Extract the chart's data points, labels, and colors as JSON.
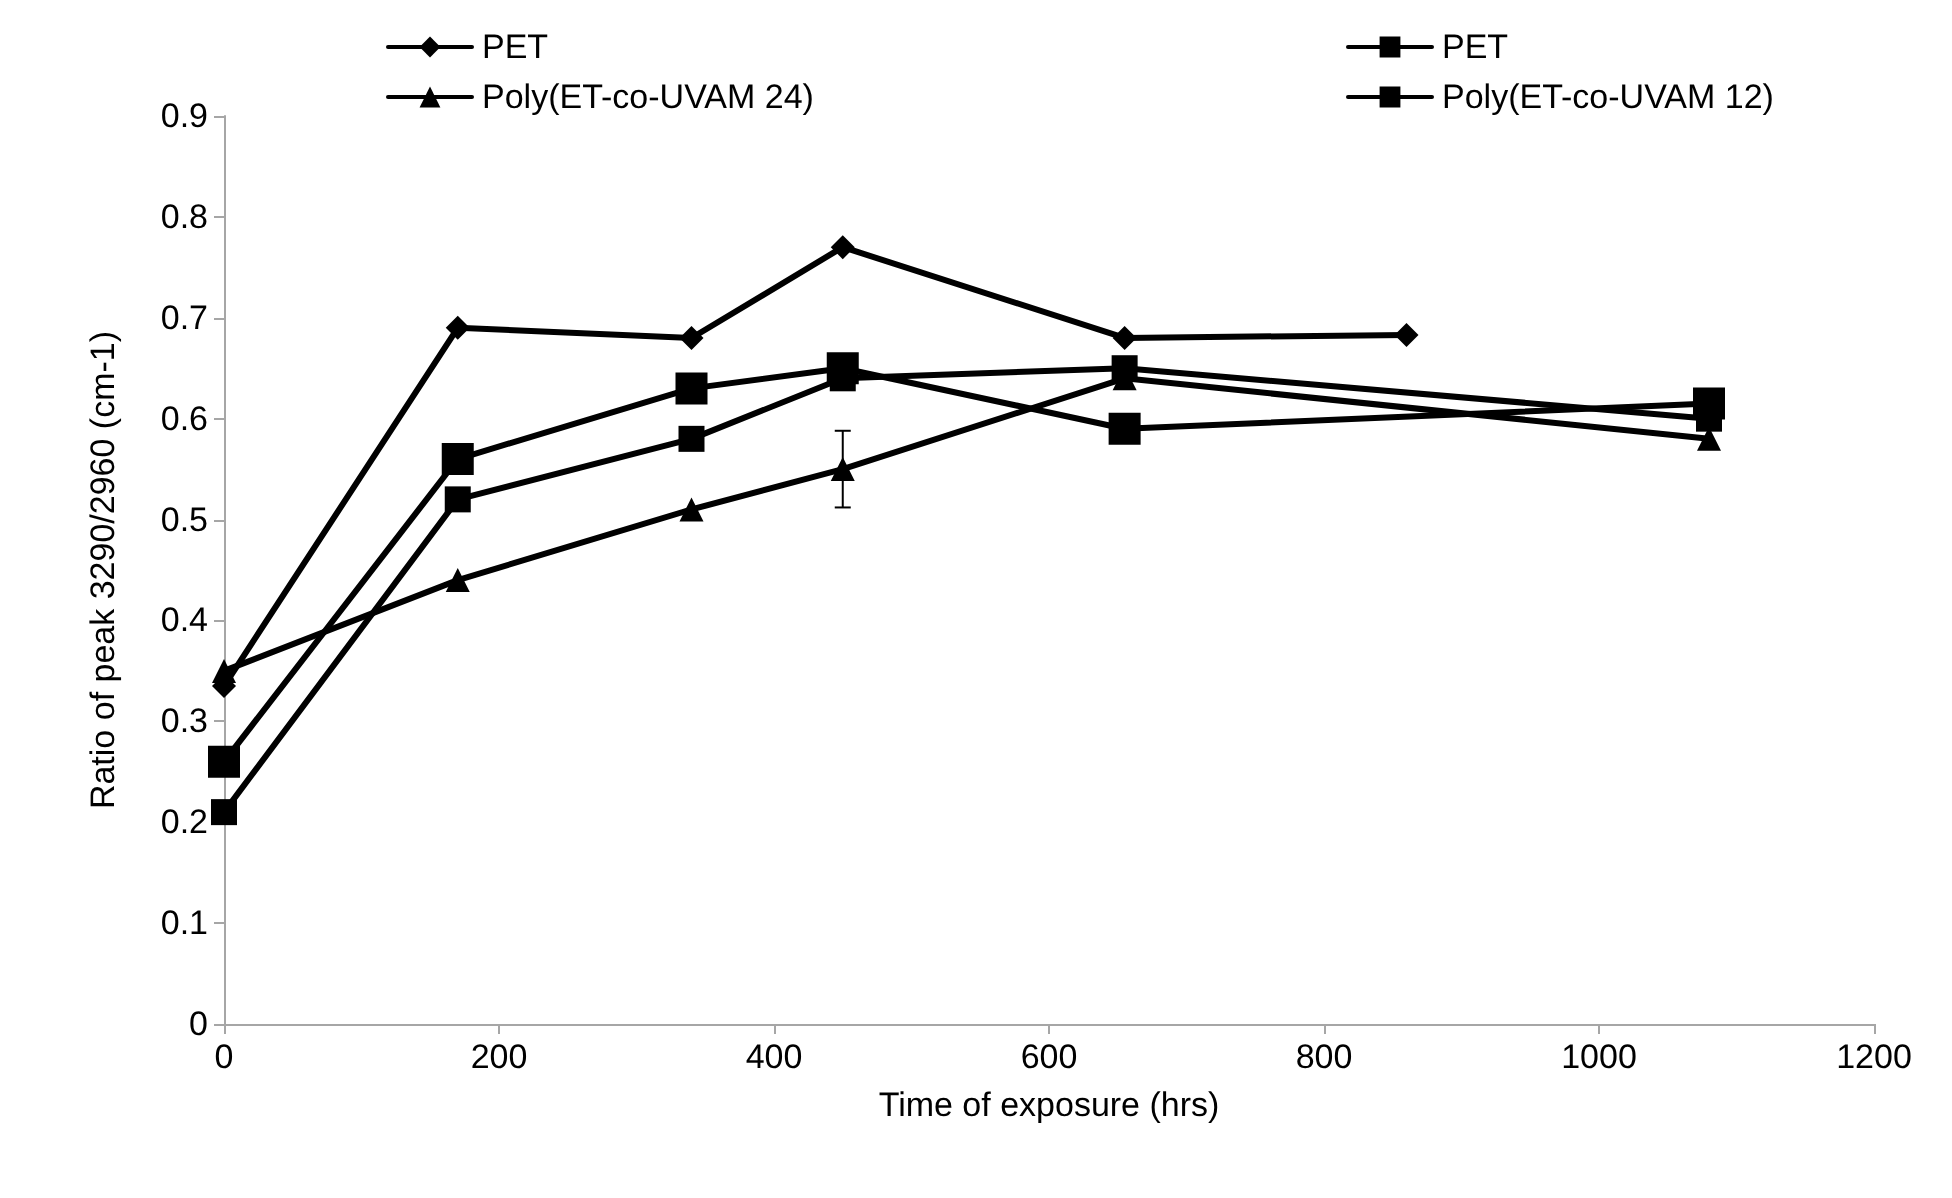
{
  "chart_data": {
    "type": "line",
    "xlabel": "Time of exposure (hrs)",
    "ylabel": "Ratio of peak 3290/2960 (cm-1)",
    "xlim": [
      0,
      1200
    ],
    "xticks": [
      0,
      200,
      400,
      600,
      800,
      1000,
      1200
    ],
    "ylim": [
      0,
      0.9
    ],
    "yticks": [
      0,
      0.1,
      0.2,
      0.3,
      0.4,
      0.5,
      0.6,
      0.7,
      0.8,
      0.9
    ],
    "grid": false,
    "legend": "top",
    "line_style": "solid",
    "series": [
      {
        "name": "PET",
        "color": "#000000",
        "marker": "diamond",
        "x": [
          0,
          170,
          340,
          450,
          655,
          860
        ],
        "values": [
          0.335,
          0.69,
          0.68,
          0.77,
          0.68,
          0.683
        ]
      },
      {
        "name": "PET",
        "color": "#000000",
        "marker": "square",
        "x": [
          0,
          170,
          340,
          450,
          655,
          1080
        ],
        "values": [
          0.26,
          0.56,
          0.63,
          0.65,
          0.59,
          0.615
        ]
      },
      {
        "name": "Poly(ET-co-UVAM 24)",
        "color": "#000000",
        "marker": "triangle",
        "x": [
          0,
          170,
          340,
          450,
          655,
          1080
        ],
        "values": [
          0.35,
          0.44,
          0.51,
          0.55,
          0.64,
          0.58
        ],
        "errors": [
          null,
          null,
          null,
          0.038,
          null,
          null
        ]
      },
      {
        "name": "Poly(ET-co-UVAM 12)",
        "color": "#000000",
        "marker": "square",
        "x": [
          0,
          170,
          340,
          450,
          655,
          1080
        ],
        "values": [
          0.21,
          0.52,
          0.58,
          0.64,
          0.65,
          0.6
        ]
      }
    ]
  }
}
